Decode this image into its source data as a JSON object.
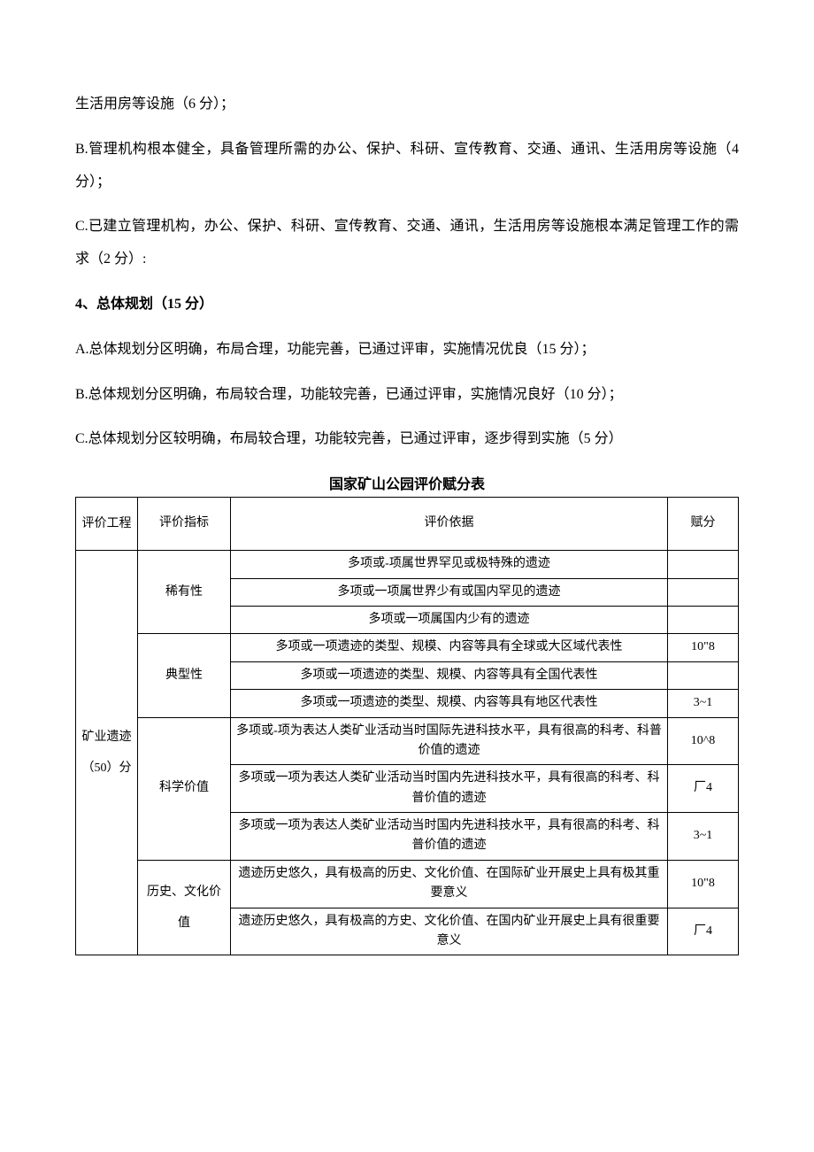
{
  "paragraphs": {
    "p1": "生活用房等设施（6 分）；",
    "p2": "B.管理机构根本健全，具备管理所需的办公、保护、科研、宣传教育、交通、通讯、生活用房等设施（4 分）；",
    "p3": "C.已建立管理机构，办公、保护、科研、宣传教育、交通、通讯，生活用房等设施根本满足管理工作的需求（2 分）:",
    "heading4": "4、总体规划（15 分）",
    "p4a": "A.总体规划分区明确，布局合理，功能完善，已通过评审，实施情况优良（15 分）；",
    "p4b": "B.总体规划分区明确，布局较合理，功能较完善，已通过评审，实施情况良好（10 分）；",
    "p4c": "C.总体规划分区较明确，布局较合理，功能较完善，已通过评审，逐步得到实施（5 分）"
  },
  "table": {
    "title": "国家矿山公园评价赋分表",
    "headers": {
      "col1": "评价工程",
      "col2": "评价指标",
      "col3": "评价依据",
      "col4": "赋分"
    },
    "category1": "矿业遗迹（50）分",
    "rows": [
      {
        "indicator": "稀有性",
        "criteria": [
          {
            "text": "多项或-项属世界罕见或极特殊的遗迹",
            "score": ""
          },
          {
            "text": "多项或一项属世界少有或国内罕见的遗迹",
            "score": ""
          },
          {
            "text": "多项或一项属国内少有的遗迹",
            "score": ""
          }
        ]
      },
      {
        "indicator": "典型性",
        "criteria": [
          {
            "text": "多项或一项遗迹的类型、规模、内容等具有全球或大区域代表性",
            "score": "10\"8"
          },
          {
            "text": "多项或一项遗迹的类型、规模、内容等具有全国代表性",
            "score": ""
          },
          {
            "text": "多项或一项遗迹的类型、规模、内容等具有地区代表性",
            "score": "3~1"
          }
        ]
      },
      {
        "indicator": "科学价值",
        "criteria": [
          {
            "text": "多项或-项为表达人类矿业活动当时国际先进科技水平，具有很高的科考、科普价值的遗迹",
            "score": "10^8"
          },
          {
            "text": "多项或一项为表达人类矿业活动当时国内先进科技水平，具有很高的科考、科普价值的遗迹",
            "score": "厂4"
          },
          {
            "text": "多项或一项为表达人类矿业活动当时国内先进科技水平，具有很高的科考、科普价值的遗迹",
            "score": "3~1"
          }
        ]
      },
      {
        "indicator": "历史、文化价值",
        "criteria": [
          {
            "text": "遗迹历史悠久，具有极高的历史、文化价值、在国际矿业开展史上具有极其重要意义",
            "score": "10\"8"
          },
          {
            "text": "遗迹历史悠久，具有极高的方史、文化价值、在国内矿业开展史上具有很重要意义",
            "score": "厂4"
          }
        ]
      }
    ]
  },
  "colors": {
    "text": "#000000",
    "gray": "#808080",
    "background": "#ffffff",
    "border": "#000000"
  },
  "typography": {
    "body_fontsize": 16,
    "table_fontsize": 14,
    "font_family": "SimSun"
  }
}
